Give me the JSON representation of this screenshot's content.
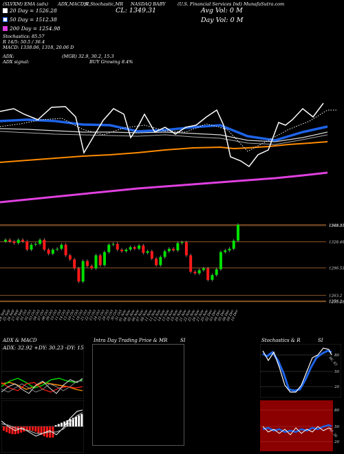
{
  "header": {
    "segments": [
      "(SLVXM) EMA (adx)",
      "ADX,MACD,R",
      "SI,Stochastic,MR",
      "NASDAQ BABY",
      "(U.S. Financial Services Ind) MunafaSutra.com"
    ],
    "ma20": "20 Day = 1526.28",
    "ma50": "50 Day = 1512.38",
    "ma200": "200 Day = 1254.98",
    "stochastic": "Stochastics: 85.57",
    "r_line": "R 14/5: 50.5 / 36.4",
    "macd_line": "MACD: 1338.06, 1318, 20.06 D",
    "close": "CL: 1349.31",
    "avg_vol": "Avg Vol: 0  M",
    "day_vol": "Day Vol: 0  M",
    "adx": "ADX:",
    "adx_value": "(MGR) 32.9, 30.2, 15.3",
    "adx_signal": "ADX  signal:",
    "adx_signal_value": "BUY Growing 8.4%"
  },
  "colors": {
    "ma20": "#ffffff",
    "ma50": "#1e63e6",
    "ma200": "#e040e0",
    "orange": "#ff8c00",
    "up": "#00e000",
    "down": "#ff1a1a",
    "grid": "#b87333"
  },
  "chart_data": {
    "type": "candlestick",
    "dates": [
      "24 Sep",
      "25 Sep",
      "26 Sep",
      "27 Sep",
      "30 Sep",
      "01 Oct",
      "02 Oct",
      "03 Oct",
      "04 Oct",
      "07 Oct",
      "08 Oct",
      "09 Oct",
      "10 Oct",
      "11 Oct",
      "14 Oct",
      "15 Oct",
      "16 Oct",
      "17 Oct",
      "18 Oct",
      "21 Oct",
      "22 Oct",
      "23 Oct",
      "24 Oct",
      "25 Oct",
      "28 Oct",
      "29 Oct",
      "30 Oct",
      "31 Oct",
      "01 Nov",
      "04 Nov",
      "05 Nov",
      "06 Nov",
      "07 Nov",
      "08 Nov",
      "11 Nov",
      "12 Nov",
      "13 Nov",
      "14 Nov",
      "15 Nov",
      "18 Nov",
      "19 Nov",
      "20 Nov",
      "21 Nov",
      "22 Nov",
      "25 Nov",
      "26 Nov",
      "27 Nov",
      "29 Nov",
      "02 Dec",
      "03 Dec",
      "04 Dec",
      "05 Dec",
      "06 Dec",
      "09 Dec",
      "10 Dec"
    ],
    "close": [
      1331,
      1329,
      1327,
      1331,
      1329,
      1319,
      1325,
      1326,
      1331,
      1319,
      1314,
      1319,
      1320,
      1325,
      1312,
      1307,
      1296,
      1280,
      1305,
      1299,
      1296,
      1312,
      1300,
      1316,
      1325,
      1326,
      1319,
      1317,
      1319,
      1322,
      1320,
      1324,
      1315,
      1317,
      1308,
      1300,
      1310,
      1317,
      1320,
      1318,
      1327,
      1328,
      1312,
      1292,
      1290,
      1294,
      1296,
      1282,
      1288,
      1295,
      1316,
      1318,
      1320,
      1330,
      1349.31
    ],
    "price_levels": [
      1349.31,
      1348.31,
      1328.46,
      1296.53,
      1263.2,
      1256.2,
      1255.28
    ],
    "ylim": [
      1250,
      1355
    ],
    "series_ma_labels": [
      "20 Day",
      "50 Day",
      "200 Day"
    ]
  },
  "panels": {
    "adx_macd_title": "ADX  & MACD",
    "adx_caption": "ADX: 32.92  +DY: 30.23 -DY: 15.26",
    "intraday_title": "Intra Day Trading Price  & MR",
    "intraday_si": "SI",
    "stoch_title": "Stochastics & R",
    "stoch_si": "SI",
    "stoch_ticks": [
      "80",
      "50",
      "20"
    ],
    "rsi_ticks": [
      "80",
      "50",
      "20"
    ],
    "stoch_value_label": "86, 83",
    "rsi_value_label": "50, 36"
  }
}
